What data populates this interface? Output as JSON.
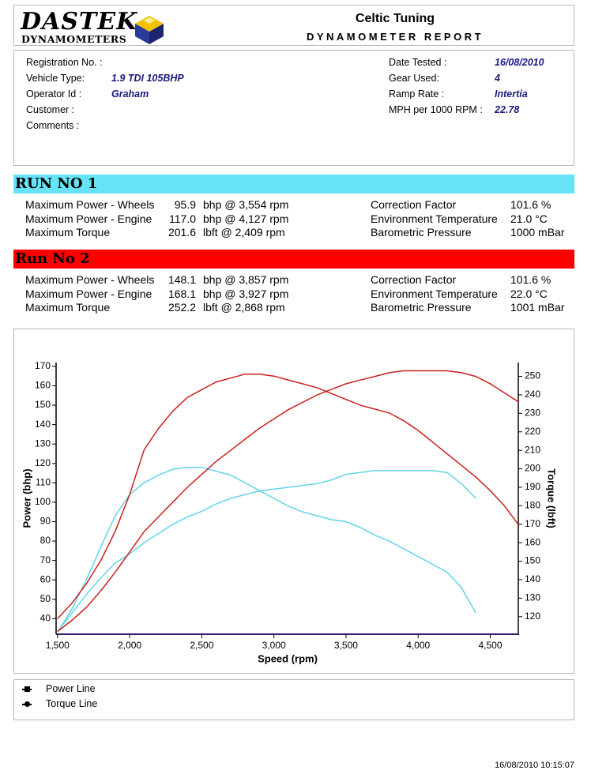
{
  "header": {
    "logo_top": "DASTEK",
    "logo_bottom": "DYNAMOMETERS",
    "company": "Celtic Tuning",
    "report_title": "DYNAMOMETER REPORT"
  },
  "info": {
    "left": [
      [
        "Registration No. :"
      ],
      [
        "Vehicle Type:",
        "1.9 TDI 105BHP"
      ],
      [
        "Operator Id :",
        "Graham"
      ],
      [
        "Customer :"
      ],
      [
        "Comments :"
      ]
    ],
    "right": [
      [
        "Date Tested :",
        "16/08/2010"
      ],
      [
        "Gear Used:",
        "4"
      ],
      [
        "Ramp Rate :",
        "Intertia"
      ],
      [
        "MPH per 1000 RPM :",
        "22.78"
      ]
    ]
  },
  "runs": [
    {
      "title": "RUN NO 1",
      "color": "#66e3f7",
      "rows": [
        [
          "Maximum Power - Wheels",
          "95.9",
          "bhp @ 3,554 rpm",
          "Correction Factor",
          "101.6 %"
        ],
        [
          "Maximum Power - Engine",
          "117.0",
          "bhp @ 4,127 rpm",
          "Environment Temperature",
          "21.0 °C"
        ],
        [
          "Maximum Torque",
          "201.6",
          "lbft @ 2,409 rpm",
          "Barometric Pressure",
          "1000 mBar"
        ]
      ]
    },
    {
      "title": "Run No 2",
      "color": "#ff0000",
      "rows": [
        [
          "Maximum Power - Wheels",
          "148.1",
          "bhp @ 3,857 rpm",
          "Correction Factor",
          "101.6 %"
        ],
        [
          "Maximum Power - Engine",
          "168.1",
          "bhp @ 3,927 rpm",
          "Environment Temperature",
          "22.0 °C"
        ],
        [
          "Maximum Torque",
          "252.2",
          "lbft @ 2,868 rpm",
          "Barometric Pressure",
          "1001 mBar"
        ]
      ]
    }
  ],
  "chart_data": {
    "type": "line",
    "xlabel": "Speed (rpm)",
    "ylabel": "Power (bhp)",
    "y2label": "Torque (lbft)",
    "x": [
      1500,
      1600,
      1700,
      1800,
      1900,
      2000,
      2100,
      2200,
      2300,
      2400,
      2500,
      2600,
      2700,
      2800,
      2900,
      3000,
      3100,
      3200,
      3300,
      3400,
      3500,
      3600,
      3700,
      3800,
      3900,
      4000,
      4100,
      4200,
      4300,
      4400,
      4500,
      4600,
      4700
    ],
    "xlim": [
      1490,
      4700
    ],
    "xticks": [
      {
        "value": 1500,
        "label": "1,500"
      },
      {
        "value": 2000,
        "label": "2,000"
      },
      {
        "value": 2500,
        "label": "2,500"
      },
      {
        "value": 3000,
        "label": "3,000"
      },
      {
        "value": 3500,
        "label": "3,500"
      },
      {
        "value": 4000,
        "label": "4,000"
      },
      {
        "value": 4500,
        "label": "4,500"
      }
    ],
    "ylim": [
      32,
      172
    ],
    "yticks": [
      40,
      50,
      60,
      70,
      80,
      90,
      100,
      110,
      120,
      130,
      140,
      150,
      160,
      170
    ],
    "y2lim": [
      110.5,
      257.5
    ],
    "y2ticks": [
      120,
      130,
      140,
      150,
      160,
      170,
      180,
      190,
      200,
      210,
      220,
      230,
      240,
      250
    ],
    "grid": false,
    "series": [
      {
        "color": "#62d4e8",
        "axis": "y",
        "values": [
          33,
          45,
          60,
          77,
          93,
          104,
          110,
          114,
          117,
          118,
          118,
          116,
          114,
          110,
          106,
          102,
          98,
          95,
          93,
          91,
          90,
          87,
          83,
          80,
          76,
          72,
          68,
          64,
          56,
          43,
          null,
          null,
          null
        ]
      },
      {
        "color": "#62d4e8",
        "axis": "y2",
        "values": [
          112,
          122,
          132,
          141,
          149,
          154,
          160,
          165,
          170,
          174,
          177,
          181,
          184,
          186,
          188,
          189,
          190,
          191,
          192,
          194,
          197,
          198,
          199,
          199,
          199,
          199,
          199,
          198,
          192,
          184,
          null,
          null,
          null
        ]
      },
      {
        "color": "#cc1f1f",
        "axis": "y",
        "values": [
          40,
          48,
          58,
          70,
          85,
          104,
          127,
          138,
          147,
          154,
          158,
          162,
          164,
          166,
          166,
          165,
          163,
          161,
          159,
          156,
          153,
          150,
          148,
          146,
          142,
          137,
          131,
          125,
          119,
          113,
          106,
          98,
          88
        ]
      },
      {
        "color": "#cc1f1f",
        "axis": "y2",
        "values": [
          112,
          118,
          125,
          134,
          144,
          155,
          166,
          174,
          182,
          190,
          197,
          204,
          210,
          216,
          222,
          227,
          232,
          236,
          240,
          243,
          246,
          248,
          250,
          252,
          253,
          253,
          253,
          253,
          252,
          250,
          246,
          241,
          236
        ]
      }
    ]
  },
  "legend": [
    "Power Line",
    "Torque Line"
  ],
  "footer": "16/08/2010 10:15:07"
}
